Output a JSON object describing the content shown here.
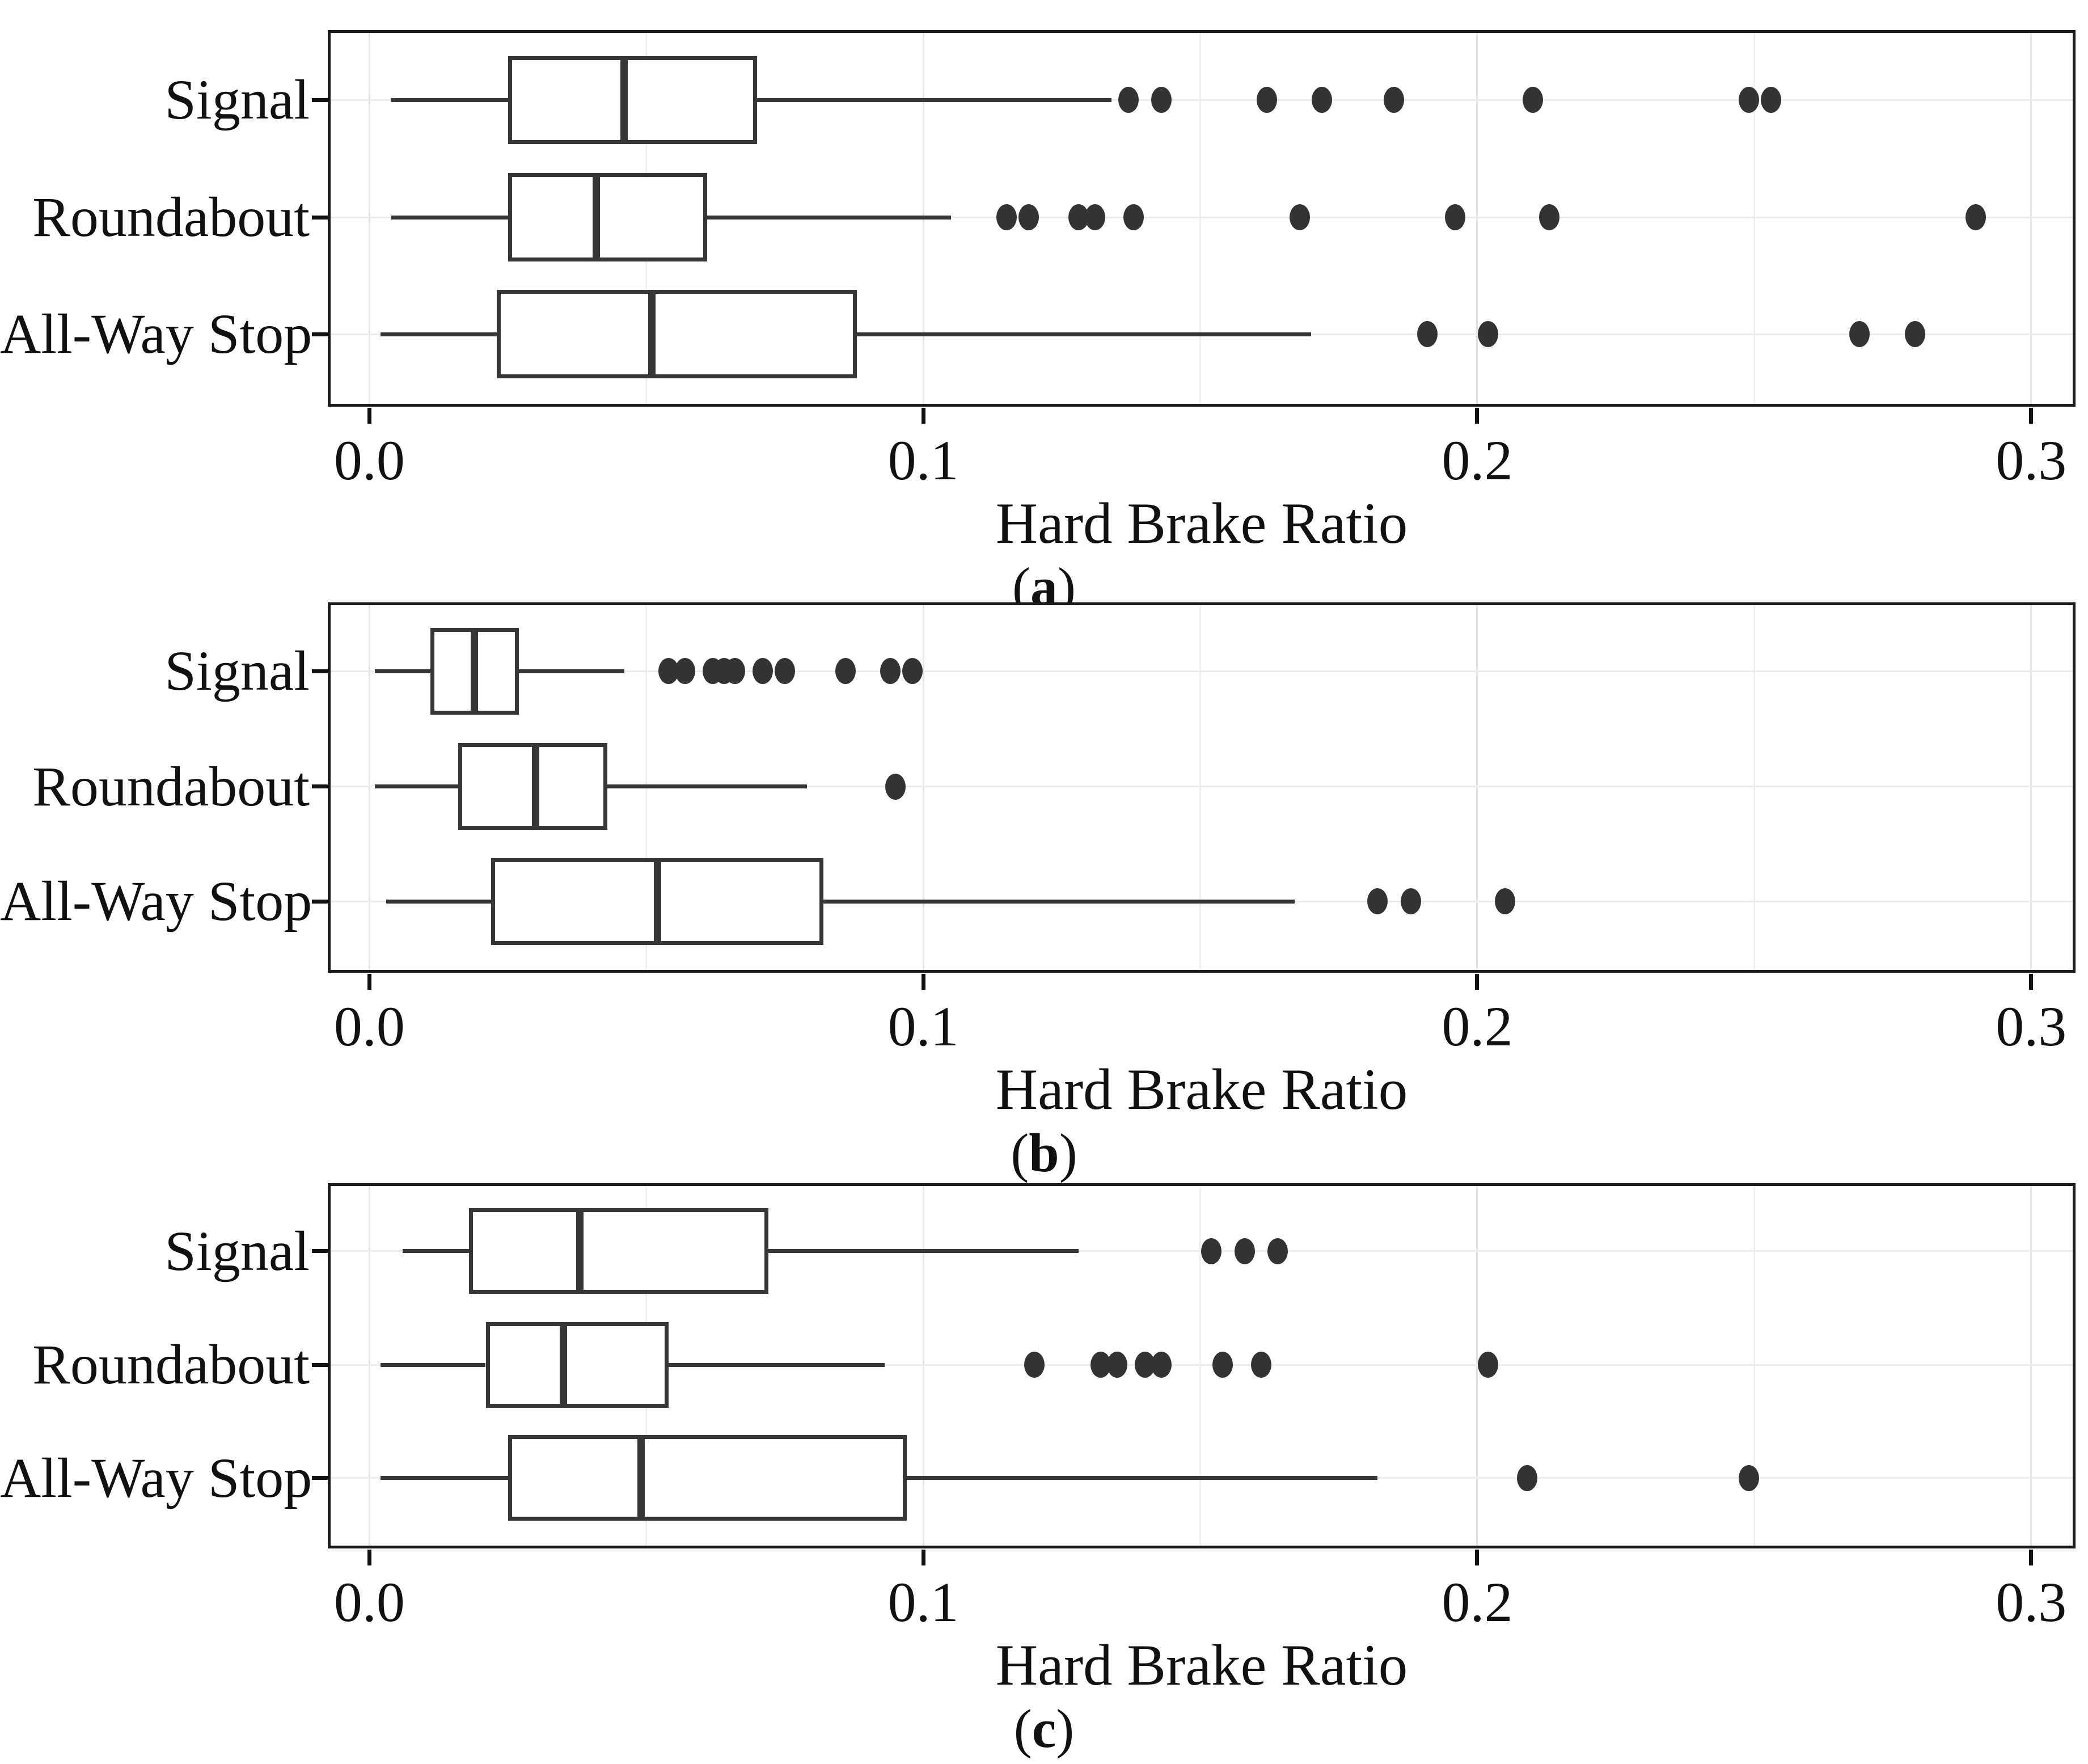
{
  "figure": {
    "background": "#ffffff",
    "ink_color": "#363636",
    "dot_color": "#333333",
    "panel_border_color": "#1b1b1b",
    "grid_major_color": "#e3e3e3",
    "grid_minor_color": "#efefef",
    "grid_row_color": "#ececec",
    "text_color": "#111111",
    "paren_open": "(",
    "paren_close": ")"
  },
  "chart_data": {
    "type": "boxplot-horizontal",
    "title": "",
    "xlabel": "Hard Brake Ratio",
    "ylabel": "",
    "categories": [
      "Signal",
      "Roundabout",
      "All-Way Stop"
    ],
    "xlim": [
      -0.007,
      0.3075
    ],
    "x_ticks": [
      0.0,
      0.1,
      0.2,
      0.3
    ],
    "x_tick_labels": [
      "0.0",
      "0.1",
      "0.2",
      "0.3"
    ],
    "x_minor_ticks": [
      0.05,
      0.15,
      0.25
    ],
    "grid": true,
    "panels": [
      {
        "panel_label": "a",
        "boxes": [
          {
            "category": "Signal",
            "whisker_low": 0.004,
            "q1": 0.025,
            "median": 0.046,
            "q3": 0.07,
            "whisker_high": 0.134,
            "outliers": [
              0.137,
              0.143,
              0.162,
              0.172,
              0.185,
              0.21,
              0.249,
              0.253
            ]
          },
          {
            "category": "Roundabout",
            "whisker_low": 0.004,
            "q1": 0.025,
            "median": 0.041,
            "q3": 0.061,
            "whisker_high": 0.105,
            "outliers": [
              0.115,
              0.119,
              0.128,
              0.131,
              0.138,
              0.168,
              0.196,
              0.213,
              0.29
            ]
          },
          {
            "category": "All-Way Stop",
            "whisker_low": 0.002,
            "q1": 0.023,
            "median": 0.051,
            "q3": 0.088,
            "whisker_high": 0.17,
            "outliers": [
              0.191,
              0.202,
              0.269,
              0.279
            ]
          }
        ]
      },
      {
        "panel_label": "b",
        "boxes": [
          {
            "category": "Signal",
            "whisker_low": 0.001,
            "q1": 0.011,
            "median": 0.019,
            "q3": 0.027,
            "whisker_high": 0.046,
            "outliers": [
              0.054,
              0.057,
              0.062,
              0.064,
              0.066,
              0.071,
              0.075,
              0.086,
              0.094,
              0.098
            ]
          },
          {
            "category": "Roundabout",
            "whisker_low": 0.001,
            "q1": 0.016,
            "median": 0.03,
            "q3": 0.043,
            "whisker_high": 0.079,
            "outliers": [
              0.095
            ]
          },
          {
            "category": "All-Way Stop",
            "whisker_low": 0.003,
            "q1": 0.022,
            "median": 0.052,
            "q3": 0.082,
            "whisker_high": 0.167,
            "outliers": [
              0.182,
              0.188,
              0.205
            ]
          }
        ]
      },
      {
        "panel_label": "c",
        "boxes": [
          {
            "category": "Signal",
            "whisker_low": 0.006,
            "q1": 0.018,
            "median": 0.038,
            "q3": 0.072,
            "whisker_high": 0.128,
            "outliers": [
              0.152,
              0.158,
              0.164
            ]
          },
          {
            "category": "Roundabout",
            "whisker_low": 0.002,
            "q1": 0.021,
            "median": 0.035,
            "q3": 0.054,
            "whisker_high": 0.093,
            "outliers": [
              0.12,
              0.132,
              0.135,
              0.14,
              0.143,
              0.154,
              0.161,
              0.202
            ]
          },
          {
            "category": "All-Way Stop",
            "whisker_low": 0.002,
            "q1": 0.025,
            "median": 0.049,
            "q3": 0.097,
            "whisker_high": 0.182,
            "outliers": [
              0.209,
              0.249
            ]
          }
        ]
      }
    ]
  }
}
